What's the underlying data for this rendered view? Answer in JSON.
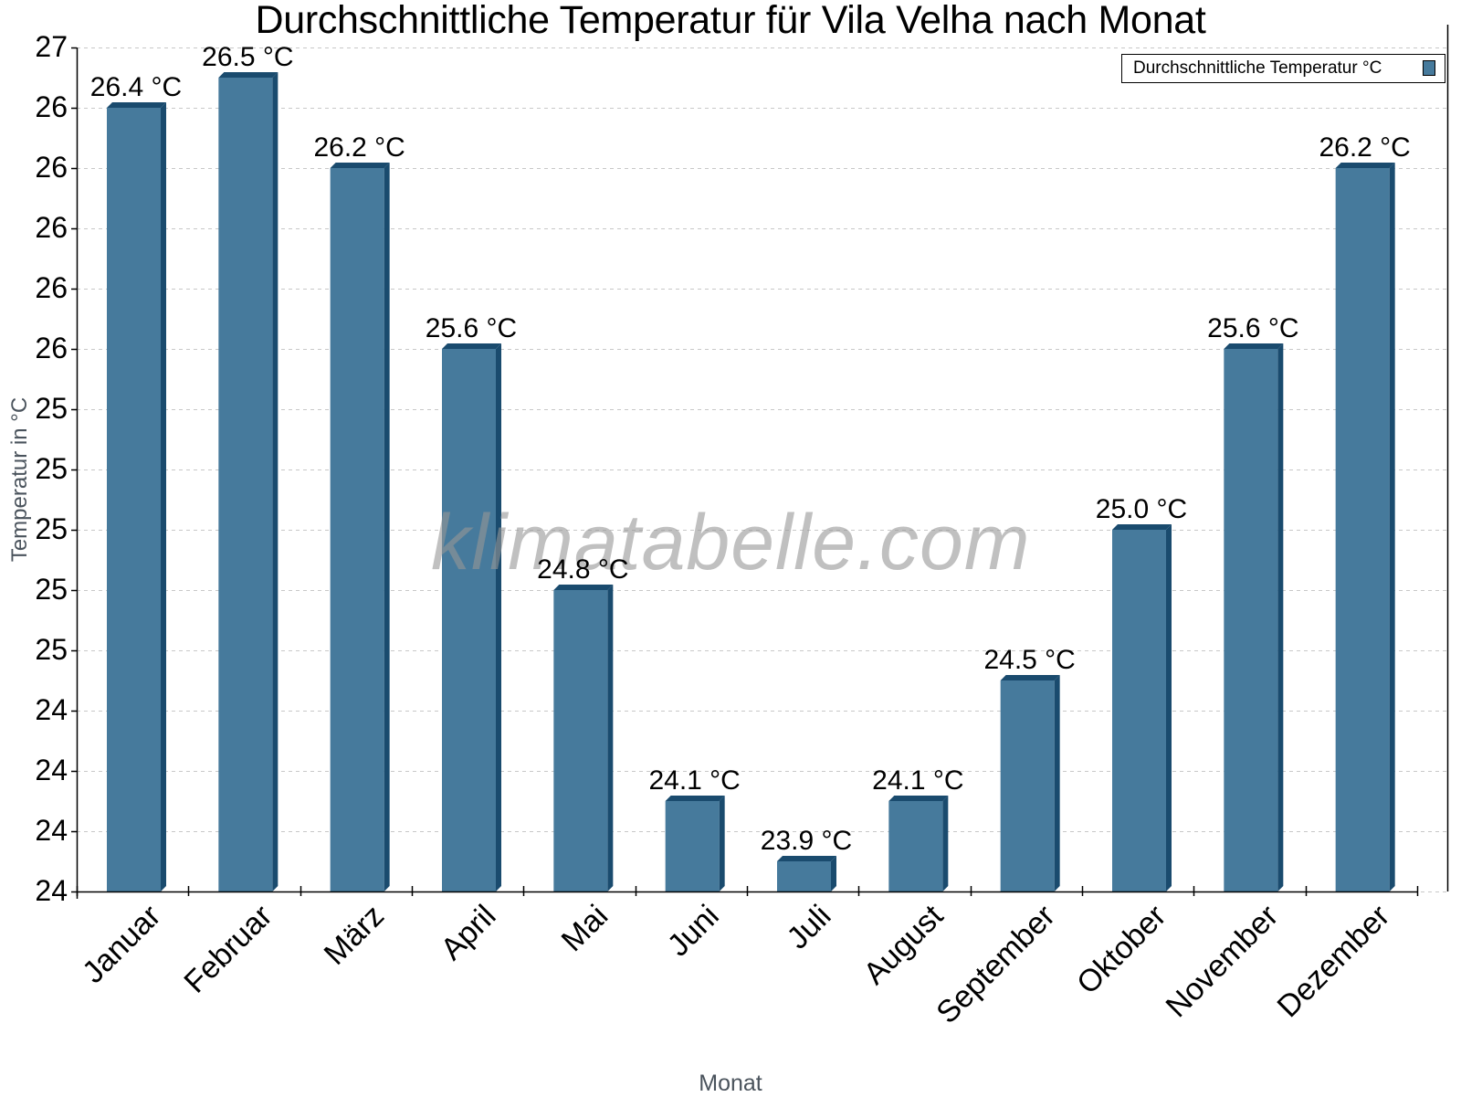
{
  "chart_data": {
    "type": "bar",
    "title": "Durchschnittliche Temperatur für Vila Velha nach Monat",
    "xlabel": "Monat",
    "ylabel": "Temperatur in °C",
    "categories": [
      "Januar",
      "Februar",
      "März",
      "April",
      "Mai",
      "Juni",
      "Juli",
      "August",
      "September",
      "Oktober",
      "November",
      "Dezember"
    ],
    "series": [
      {
        "name": "Durchschnittliche Temperatur °C",
        "values": [
          26.4,
          26.5,
          26.2,
          25.6,
          24.8,
          24.1,
          23.9,
          24.1,
          24.5,
          25.0,
          25.6,
          26.2
        ],
        "color": "#467a9c"
      }
    ],
    "value_labels": [
      "26.4 °C",
      "26.5 °C",
      "26.2 °C",
      "25.6 °C",
      "24.8 °C",
      "24.1 °C",
      "23.9 °C",
      "24.1 °C",
      "24.5 °C",
      "25.0 °C",
      "25.6 °C",
      "26.2 °C"
    ],
    "ylim": [
      23.8,
      26.6
    ],
    "ytick_values": [
      26.6,
      26.4,
      26.2,
      26.0,
      25.8,
      25.6,
      25.4,
      25.2,
      25.0,
      24.8,
      24.6,
      24.4,
      24.2,
      24.0,
      23.8
    ],
    "ytick_labels": [
      "27",
      "26",
      "26",
      "26",
      "26",
      "26",
      "25",
      "25",
      "25",
      "25",
      "25",
      "24",
      "24",
      "24",
      "24"
    ],
    "grid": true,
    "legend_position": "top-right"
  },
  "legend": {
    "label": "Durchschnittliche Temperatur °C"
  },
  "watermark": "klimatabelle.com",
  "colors": {
    "bar_face": "#467a9c",
    "bar_edge": "#1a4b6e",
    "grid": "#c8c8c8",
    "axis_title": "#4a535c"
  }
}
